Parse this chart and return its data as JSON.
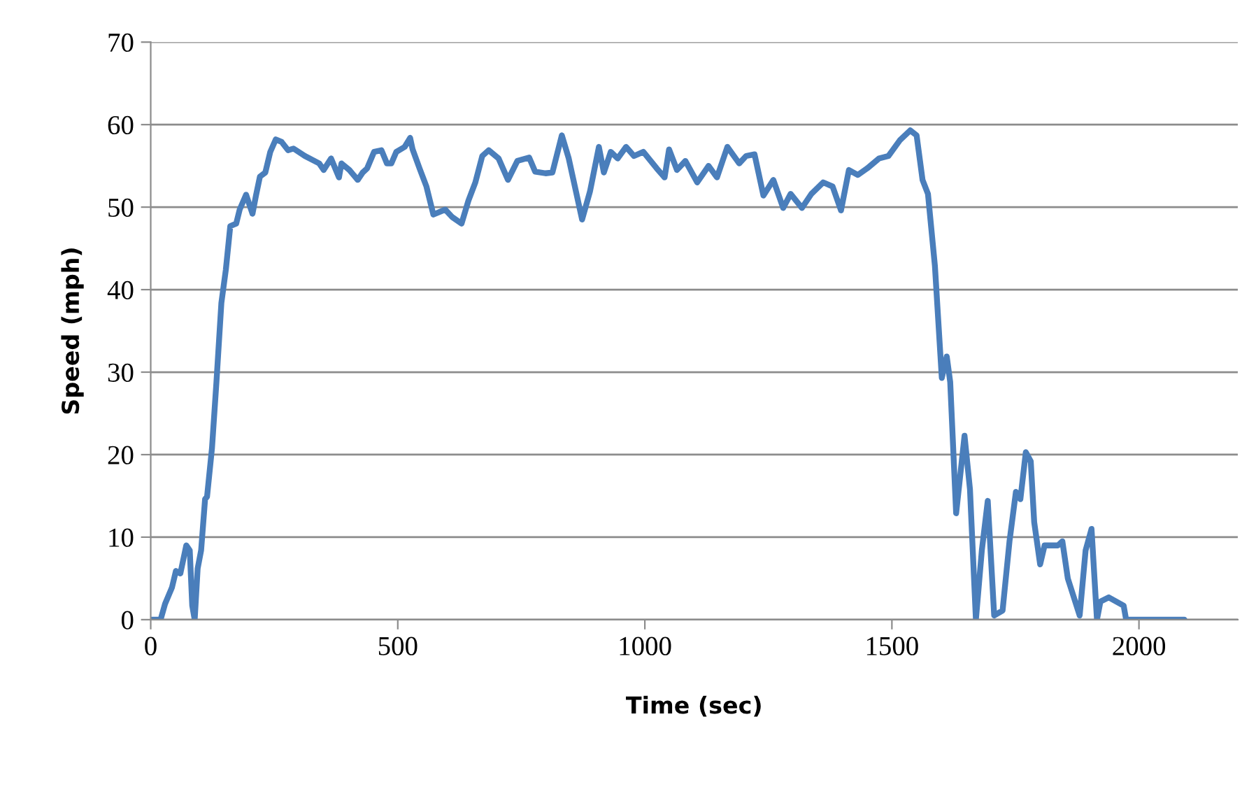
{
  "chart_data": {
    "type": "line",
    "xlabel": "Time (sec)",
    "ylabel": "Speed (mph)",
    "xlim": [
      0,
      2200
    ],
    "xticks": [
      0,
      500,
      1000,
      1500,
      2000
    ],
    "ylim": [
      0,
      70
    ],
    "yticks": [
      0,
      10,
      20,
      30,
      40,
      50,
      60,
      70
    ],
    "grid": "y",
    "legend": false,
    "marker": "none",
    "line_style": "solid",
    "series": [
      {
        "color": "#4a7ebb",
        "x": [
          0,
          20,
          29,
          43,
          51,
          60,
          72,
          79,
          84,
          89,
          95,
          102,
          110,
          114,
          124,
          133,
          143,
          152,
          161,
          173,
          180,
          193,
          206,
          213,
          221,
          232,
          242,
          253,
          265,
          278,
          289,
          312,
          341,
          350,
          365,
          381,
          386,
          402,
          419,
          429,
          438,
          452,
          467,
          478,
          487,
          497,
          514,
          525,
          530,
          544,
          558,
          572,
          596,
          610,
          629,
          643,
          657,
          671,
          684,
          704,
          723,
          742,
          766,
          778,
          799,
          813,
          832,
          846,
          873,
          889,
          907,
          917,
          931,
          945,
          962,
          978,
          997,
          1024,
          1040,
          1049,
          1065,
          1082,
          1106,
          1129,
          1146,
          1167,
          1191,
          1205,
          1222,
          1240,
          1260,
          1280,
          1295,
          1318,
          1337,
          1361,
          1380,
          1397,
          1413,
          1431,
          1450,
          1474,
          1493,
          1516,
          1537,
          1550,
          1562,
          1573,
          1587,
          1601,
          1611,
          1618,
          1630,
          1647,
          1658,
          1670,
          1682,
          1694,
          1707,
          1724,
          1738,
          1751,
          1760,
          1771,
          1781,
          1788,
          1800,
          1809,
          1836,
          1845,
          1856,
          1880,
          1892,
          1904,
          1915,
          1922,
          1939,
          1969,
          1974,
          2092
        ],
        "values": [
          0,
          0,
          1.9,
          3.9,
          5.9,
          5.6,
          9,
          8.4,
          1.7,
          0,
          6.2,
          8.4,
          14.6,
          14.9,
          20.8,
          28.8,
          38.4,
          42.4,
          47.7,
          48,
          49.7,
          51.5,
          49.2,
          51.4,
          53.7,
          54.2,
          56.7,
          58.2,
          57.9,
          56.9,
          57.1,
          56.2,
          55.3,
          54.5,
          55.9,
          53.6,
          55.3,
          54.5,
          53.3,
          54.2,
          54.7,
          56.7,
          56.9,
          55.3,
          55.3,
          56.7,
          57.3,
          58.4,
          57,
          54.7,
          52.5,
          49.1,
          49.7,
          48.8,
          48,
          50.8,
          53,
          56.2,
          56.9,
          55.9,
          53.3,
          55.6,
          56,
          54.3,
          54.1,
          54.2,
          58.7,
          55.9,
          48.5,
          51.9,
          57.3,
          54.2,
          56.7,
          55.9,
          57.3,
          56.2,
          56.7,
          54.7,
          53.6,
          57,
          54.5,
          55.6,
          53,
          55,
          53.6,
          57.3,
          55.3,
          56.2,
          56.4,
          51.4,
          53.3,
          49.9,
          51.6,
          49.9,
          51.6,
          53,
          52.5,
          49.6,
          54.5,
          53.9,
          54.7,
          55.9,
          56.2,
          58.1,
          59.3,
          58.7,
          53.3,
          51.6,
          42.9,
          29.3,
          31.9,
          28.8,
          12.9,
          22.3,
          15.8,
          0,
          8.4,
          14.4,
          0.5,
          1.1,
          9.5,
          15.5,
          14.6,
          20.3,
          19.2,
          11.8,
          6.7,
          9,
          9,
          9.5,
          5,
          0.5,
          8.4,
          11,
          0,
          2.2,
          2.7,
          1.7,
          0,
          0
        ]
      }
    ]
  }
}
